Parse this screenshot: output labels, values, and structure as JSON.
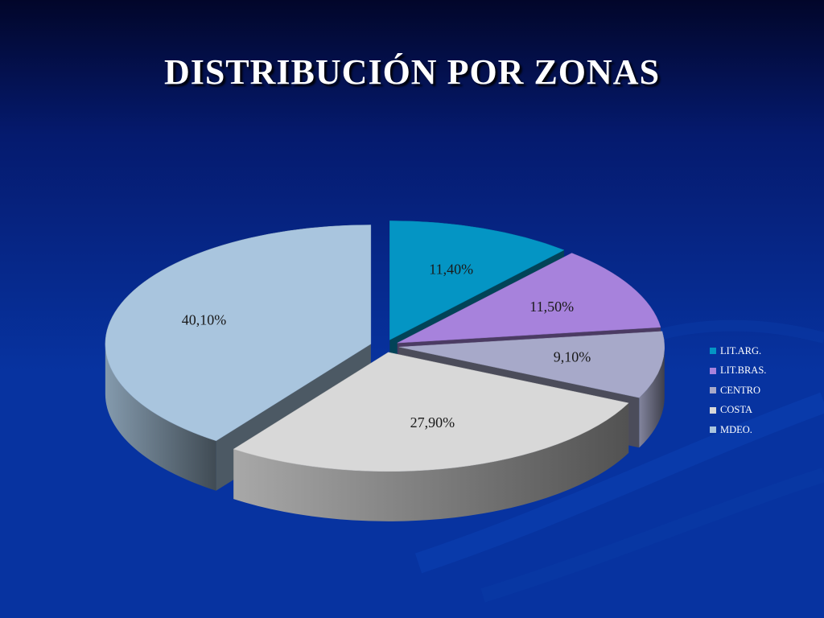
{
  "title": "DISTRIBUCIÓN POR ZONAS",
  "chart_data": {
    "type": "pie",
    "title": "DISTRIBUCIÓN POR ZONAS",
    "categories": [
      "LIT.ARG.",
      "LIT.BRAS.",
      "CENTRO",
      "COSTA",
      "MDEO."
    ],
    "values": [
      11.4,
      11.5,
      9.1,
      27.9,
      40.1
    ],
    "labels": [
      "11,40%",
      "11,50%",
      "9,10%",
      "27,90%",
      "40,10%"
    ],
    "colors": [
      "#0495c4",
      "#a782dc",
      "#a7a9c9",
      "#d8d8d8",
      "#a9c5de"
    ],
    "style": "3d-exploded",
    "legend_position": "right"
  }
}
